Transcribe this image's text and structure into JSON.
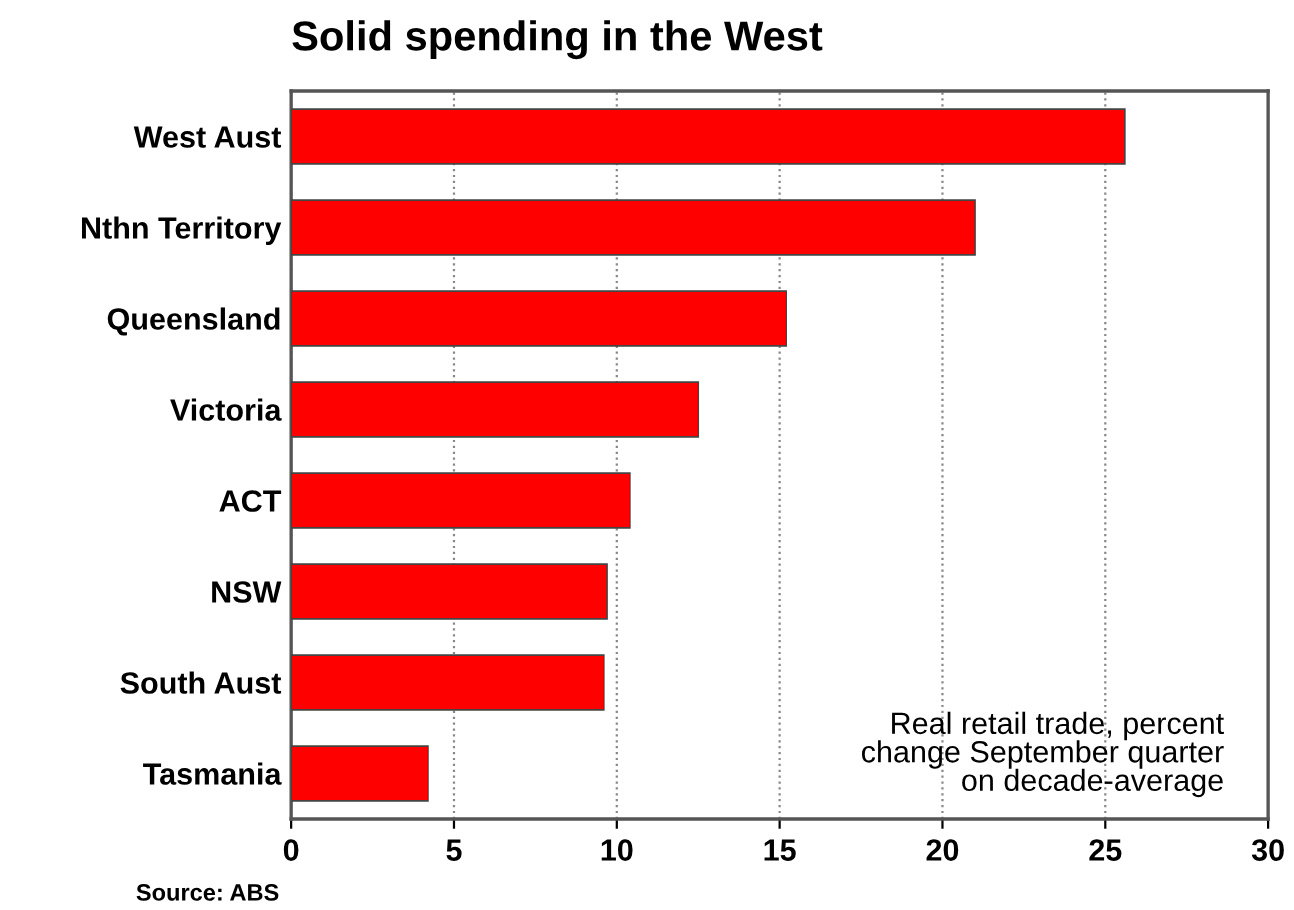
{
  "chart_data": {
    "type": "bar",
    "orientation": "horizontal",
    "title": "Solid spending in the West",
    "categories": [
      "West Aust",
      "Nthn Territory",
      "Queensland",
      "Victoria",
      "ACT",
      "NSW",
      "South Aust",
      "Tasmania"
    ],
    "values": [
      25.6,
      21.0,
      15.2,
      12.5,
      10.4,
      9.7,
      9.6,
      4.2
    ],
    "color": "#ff0000",
    "xlim": [
      0,
      30
    ],
    "xticks": [
      0,
      5,
      10,
      15,
      20,
      25,
      30
    ],
    "grid": "x",
    "line_style": "dotted",
    "annotations": [
      "Real retail trade, percent\nchange September quarter\non decade-average",
      "Source: ABS"
    ]
  }
}
